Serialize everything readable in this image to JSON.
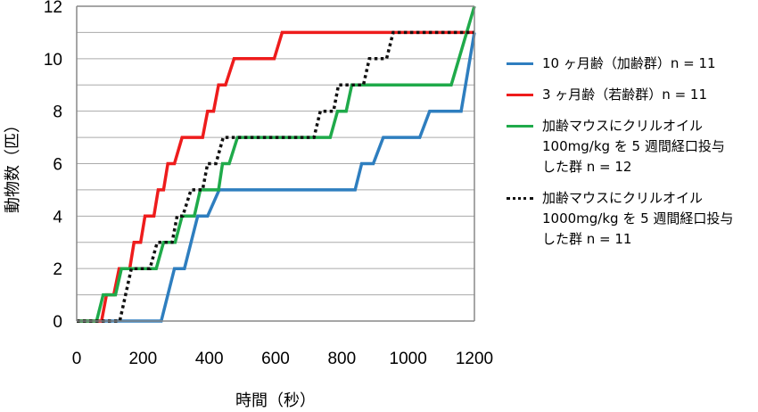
{
  "chart_data": {
    "type": "line",
    "xlabel": "時間（秒）",
    "ylabel": "動物数（匹）",
    "xlim": [
      0,
      1200
    ],
    "ylim": [
      0,
      12
    ],
    "xticks": [
      "0",
      "200",
      "400",
      "600",
      "800",
      "1000",
      "1200"
    ],
    "yticks": [
      "0",
      "2",
      "4",
      "6",
      "8",
      "10",
      "12"
    ],
    "grid": true,
    "legend": "right",
    "step": true,
    "series": [
      {
        "name": "10 ヶ月齢（加齢群）n = 11",
        "color": "#2e7ebf",
        "dash": "solid",
        "points": [
          [
            0,
            0
          ],
          [
            255,
            0
          ],
          [
            295,
            2
          ],
          [
            325,
            2
          ],
          [
            365,
            4
          ],
          [
            395,
            4
          ],
          [
            430,
            5
          ],
          [
            840,
            5
          ],
          [
            860,
            6
          ],
          [
            895,
            6
          ],
          [
            925,
            7
          ],
          [
            1035,
            7
          ],
          [
            1065,
            8
          ],
          [
            1160,
            8
          ],
          [
            1200,
            11
          ]
        ]
      },
      {
        "name": "3 ヶ月齢（若齢群）n = 11",
        "color": "#ee1c1c",
        "dash": "solid",
        "points": [
          [
            0,
            0
          ],
          [
            75,
            0
          ],
          [
            90,
            1
          ],
          [
            112,
            1
          ],
          [
            128,
            2
          ],
          [
            160,
            2
          ],
          [
            173,
            3
          ],
          [
            193,
            3
          ],
          [
            206,
            4
          ],
          [
            233,
            4
          ],
          [
            246,
            5
          ],
          [
            262,
            5
          ],
          [
            275,
            6
          ],
          [
            295,
            6
          ],
          [
            318,
            7
          ],
          [
            380,
            7
          ],
          [
            395,
            8
          ],
          [
            413,
            8
          ],
          [
            428,
            9
          ],
          [
            449,
            9
          ],
          [
            475,
            10
          ],
          [
            596,
            10
          ],
          [
            620,
            11
          ],
          [
            1200,
            11
          ]
        ]
      },
      {
        "name": "加齢マウスにクリルオイル\n100mg/kg を 5 週間経口投与\nした群 n = 12",
        "color": "#1faa4a",
        "dash": "solid",
        "points": [
          [
            0,
            0
          ],
          [
            60,
            0
          ],
          [
            80,
            1
          ],
          [
            117,
            1
          ],
          [
            135,
            2
          ],
          [
            240,
            2
          ],
          [
            262,
            3
          ],
          [
            297,
            3
          ],
          [
            318,
            4
          ],
          [
            355,
            4
          ],
          [
            373,
            5
          ],
          [
            428,
            5
          ],
          [
            440,
            6
          ],
          [
            460,
            6
          ],
          [
            485,
            7
          ],
          [
            765,
            7
          ],
          [
            787,
            8
          ],
          [
            813,
            8
          ],
          [
            830,
            9
          ],
          [
            1130,
            9
          ],
          [
            1200,
            12
          ]
        ]
      },
      {
        "name": "加齢マウスにクリルオイル\n1000mg/kg を 5 週間経口投与\nした群 n = 11",
        "color": "#111111",
        "dash": "dotted",
        "points": [
          [
            0,
            0
          ],
          [
            130,
            0
          ],
          [
            165,
            2
          ],
          [
            221,
            2
          ],
          [
            243,
            3
          ],
          [
            288,
            3
          ],
          [
            303,
            4
          ],
          [
            320,
            4
          ],
          [
            345,
            5
          ],
          [
            380,
            5
          ],
          [
            395,
            6
          ],
          [
            420,
            6
          ],
          [
            442,
            7
          ],
          [
            716,
            7
          ],
          [
            735,
            8
          ],
          [
            775,
            8
          ],
          [
            790,
            9
          ],
          [
            865,
            9
          ],
          [
            883,
            10
          ],
          [
            935,
            10
          ],
          [
            955,
            11
          ],
          [
            1200,
            11
          ]
        ]
      }
    ]
  }
}
